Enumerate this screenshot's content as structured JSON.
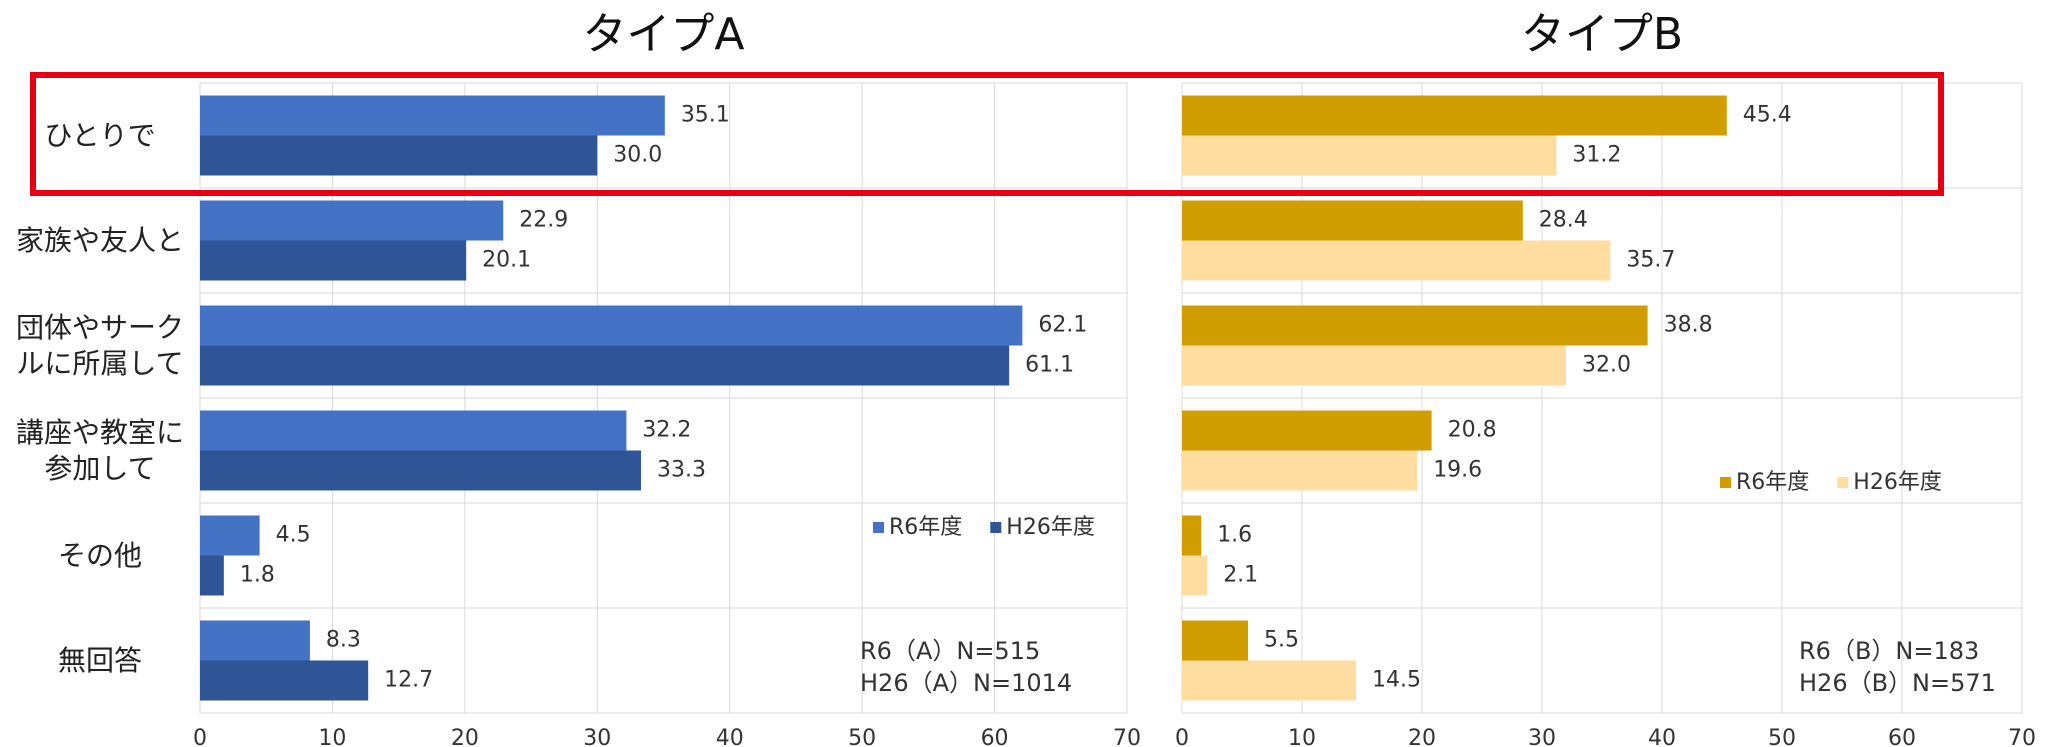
{
  "chart_data": [
    {
      "type": "bar",
      "orientation": "horizontal",
      "title": "タイプA",
      "categories": [
        "ひとりで",
        "家族や友人と",
        "団体やサークルに所属して",
        "講座や教室に参加して",
        "その他",
        "無回答"
      ],
      "series": [
        {
          "name": "R6年度",
          "color": "#4472c4",
          "values": [
            35.1,
            22.9,
            62.1,
            32.2,
            4.5,
            8.3
          ],
          "value_labels": [
            "35.1",
            "22.9",
            "62.1",
            "32.2",
            "4.5",
            "8.3"
          ]
        },
        {
          "name": "H26年度",
          "color": "#2f5597",
          "values": [
            30.0,
            20.1,
            61.1,
            33.3,
            1.8,
            12.7
          ],
          "value_labels": [
            "30.0",
            "20.1",
            "61.1",
            "33.3",
            "1.8",
            "12.7"
          ]
        }
      ],
      "xlim": [
        0,
        70
      ],
      "xticks": [
        0,
        10,
        20,
        30,
        40,
        50,
        60,
        70
      ],
      "grid": true,
      "legend": "right",
      "annotations": [
        "R6（A）N=515",
        "H26（A）N=1014"
      ]
    },
    {
      "type": "bar",
      "orientation": "horizontal",
      "title": "タイプB",
      "series": [
        {
          "name": "R6年度",
          "color": "#d09e00",
          "values": [
            45.4,
            28.4,
            38.8,
            20.8,
            1.6,
            5.5
          ],
          "value_labels": [
            "45.4",
            "28.4",
            "38.8",
            "20.8",
            "1.6",
            "5.5"
          ]
        },
        {
          "name": "H26年度",
          "color": "#ffdca0",
          "values": [
            31.2,
            35.7,
            32.0,
            19.6,
            2.1,
            14.5
          ],
          "value_labels": [
            "31.2",
            "35.7",
            "32.0",
            "19.6",
            "2.1",
            "14.5"
          ]
        }
      ],
      "xlim": [
        0,
        70
      ],
      "xticks": [
        0,
        10,
        20,
        30,
        40,
        50,
        60,
        70
      ],
      "grid": true,
      "legend": "right",
      "annotations": [
        "R6（B）N=183",
        "H26（B）N=571"
      ]
    }
  ]
}
